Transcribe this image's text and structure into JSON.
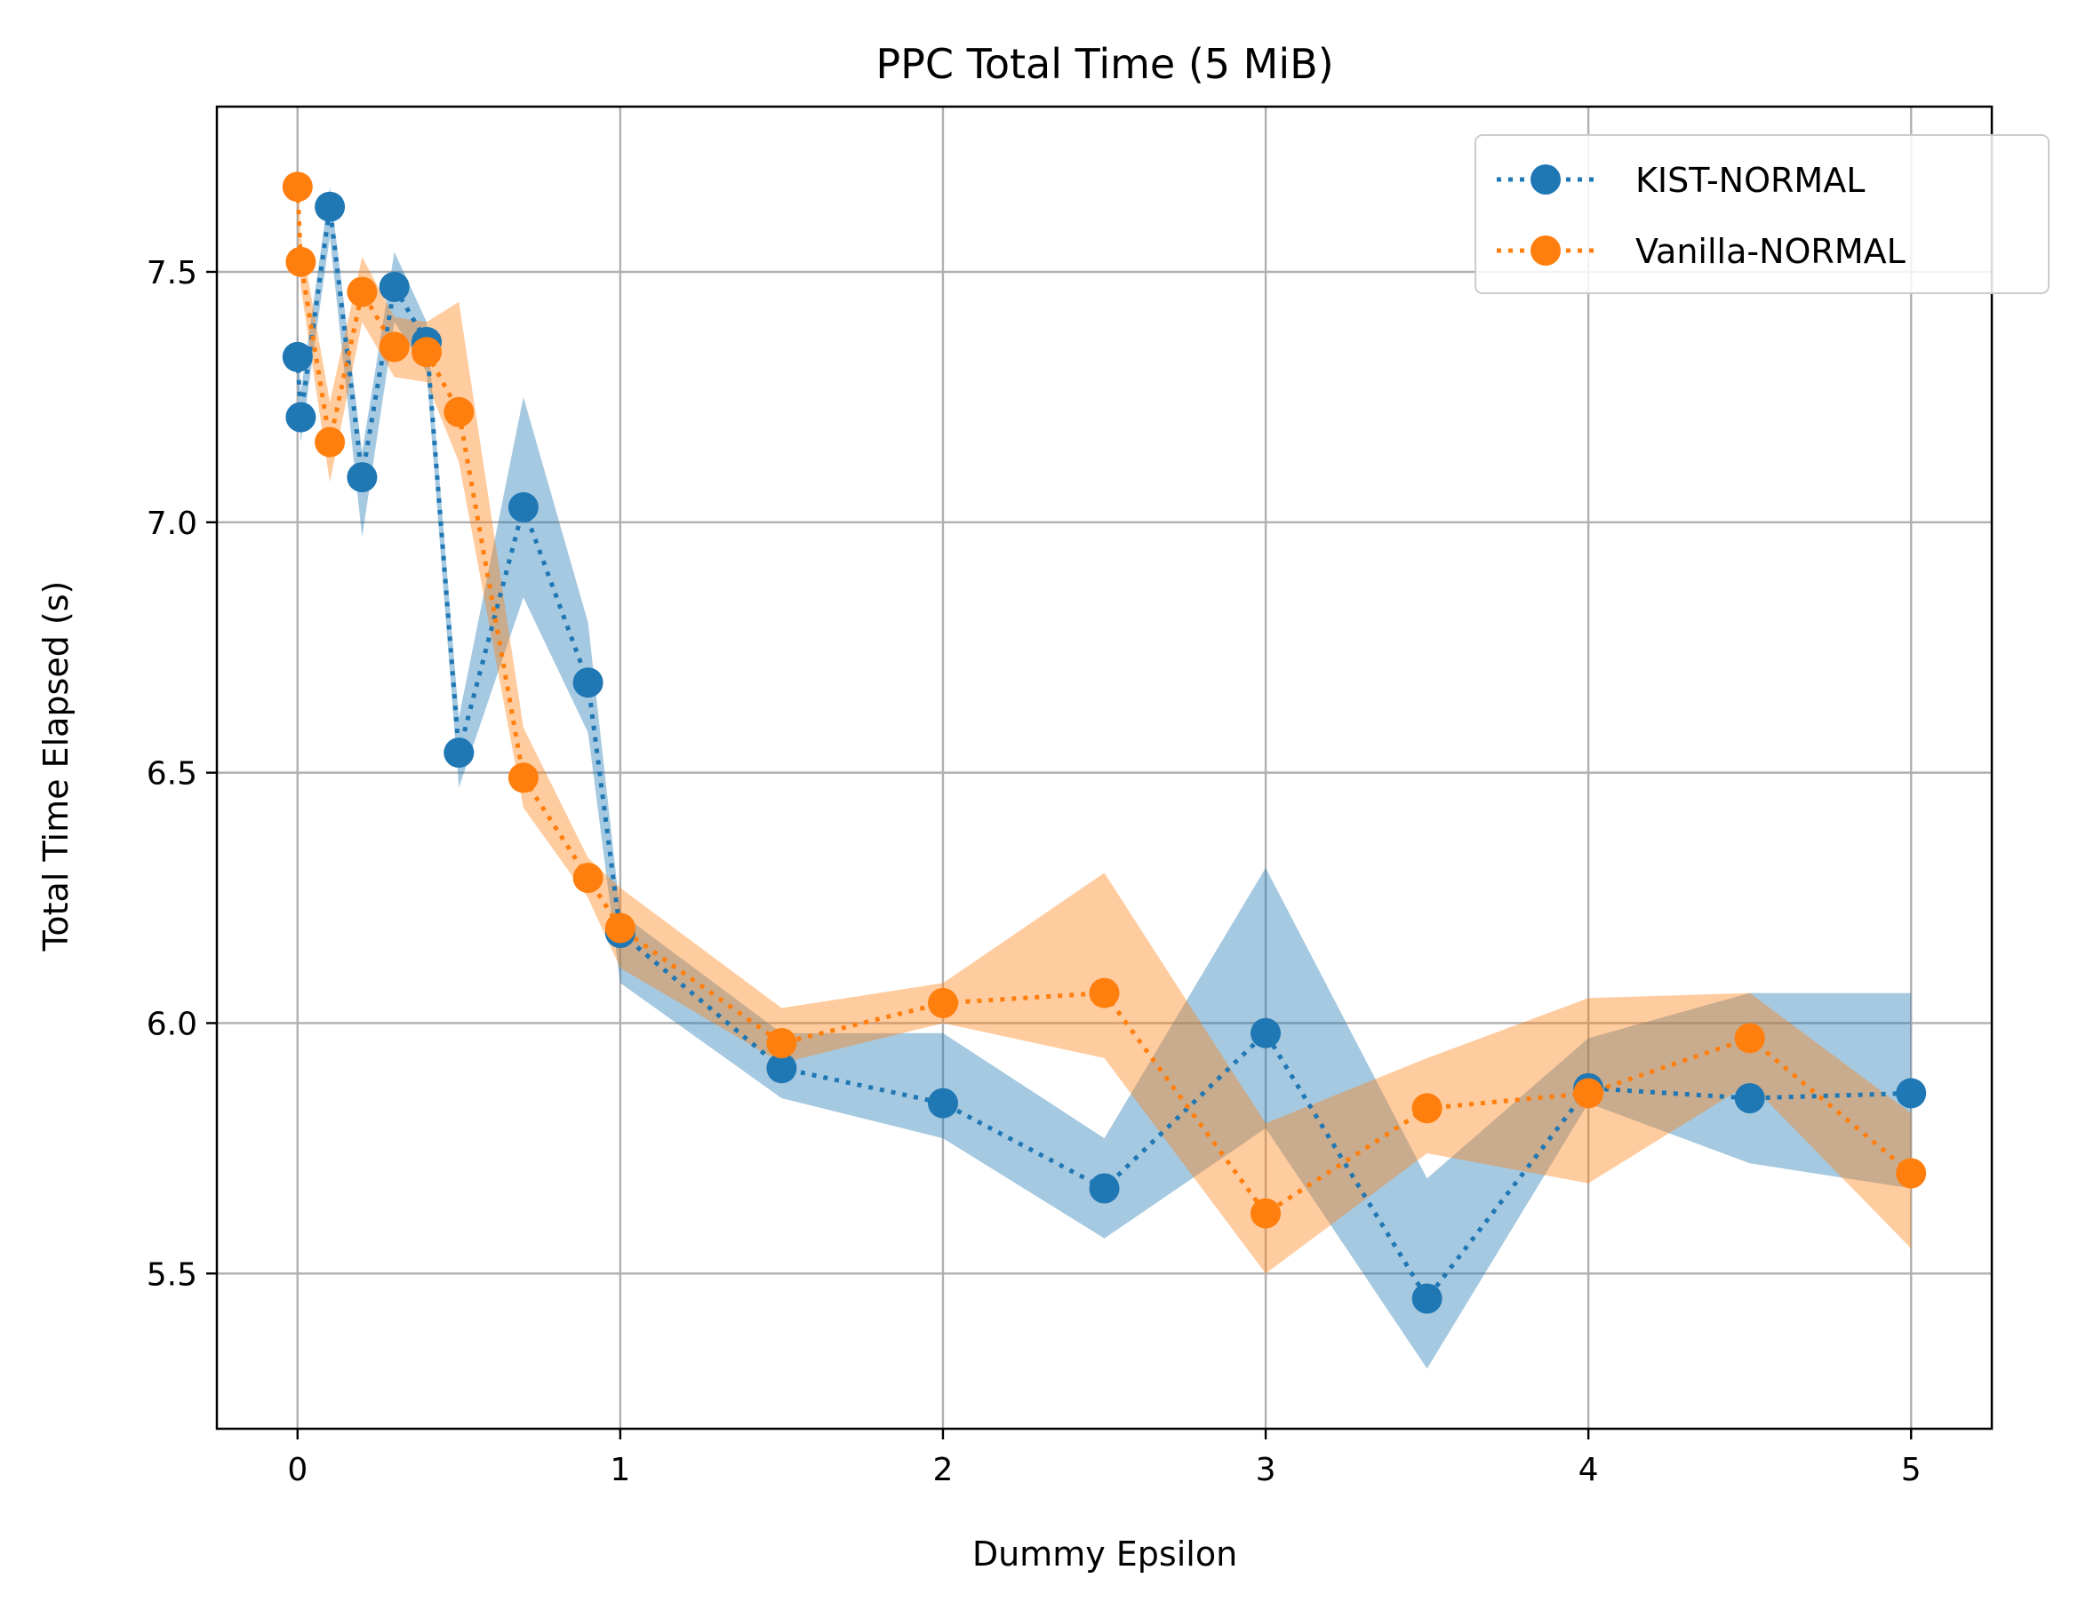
{
  "chart_data": {
    "type": "line",
    "title": "PPC Total Time (5 MiB)",
    "xlabel": "Dummy Epsilon",
    "ylabel": "Total Time Elapsed (s)",
    "xlim": [
      -0.25,
      5.25
    ],
    "ylim": [
      5.19,
      7.83
    ],
    "xticks": [
      0,
      1,
      2,
      3,
      4,
      5
    ],
    "yticks": [
      5.5,
      6.0,
      6.5,
      7.0,
      7.5
    ],
    "ytick_labels": [
      "5.5",
      "6.0",
      "6.5",
      "7.0",
      "7.5"
    ],
    "grid": true,
    "legend": "top-right",
    "series": [
      {
        "name": "KIST-NORMAL",
        "color": "#1f77b4",
        "x": [
          0,
          0.01,
          0.1,
          0.2,
          0.3,
          0.4,
          0.5,
          0.7,
          0.9,
          1,
          1.5,
          2,
          2.5,
          3,
          3.5,
          4,
          4.5,
          5
        ],
        "y": [
          7.33,
          7.21,
          7.63,
          7.09,
          7.47,
          7.36,
          6.54,
          7.03,
          6.68,
          6.18,
          5.91,
          5.84,
          5.67,
          5.98,
          5.45,
          5.87,
          5.85,
          5.86
        ],
        "lower": [
          7.29,
          7.16,
          7.57,
          6.97,
          7.4,
          7.3,
          6.47,
          6.85,
          6.58,
          6.08,
          5.85,
          5.77,
          5.57,
          5.79,
          5.31,
          5.84,
          5.72,
          5.67
        ],
        "upper": [
          7.38,
          7.26,
          7.67,
          7.14,
          7.54,
          7.4,
          6.61,
          7.25,
          6.8,
          6.22,
          5.98,
          5.98,
          5.77,
          6.31,
          5.69,
          5.97,
          6.06,
          6.06
        ]
      },
      {
        "name": "Vanilla-NORMAL",
        "color": "#ff7f0e",
        "x": [
          0,
          0.01,
          0.1,
          0.2,
          0.3,
          0.4,
          0.5,
          0.7,
          0.9,
          1,
          1.5,
          2,
          2.5,
          3,
          3.5,
          4,
          4.5,
          5
        ],
        "y": [
          7.67,
          7.52,
          7.16,
          7.46,
          7.35,
          7.34,
          7.22,
          6.49,
          6.29,
          6.19,
          5.96,
          6.04,
          6.06,
          5.62,
          5.83,
          5.86,
          5.97,
          5.7
        ],
        "lower": [
          7.62,
          7.47,
          7.08,
          7.4,
          7.29,
          7.28,
          7.12,
          6.43,
          6.25,
          6.11,
          5.92,
          6.0,
          5.93,
          5.5,
          5.74,
          5.68,
          5.88,
          5.55
        ],
        "upper": [
          7.71,
          7.57,
          7.24,
          7.53,
          7.41,
          7.4,
          7.44,
          6.59,
          6.33,
          6.27,
          6.03,
          6.08,
          6.3,
          5.8,
          5.93,
          6.05,
          6.06,
          5.82
        ]
      }
    ]
  }
}
